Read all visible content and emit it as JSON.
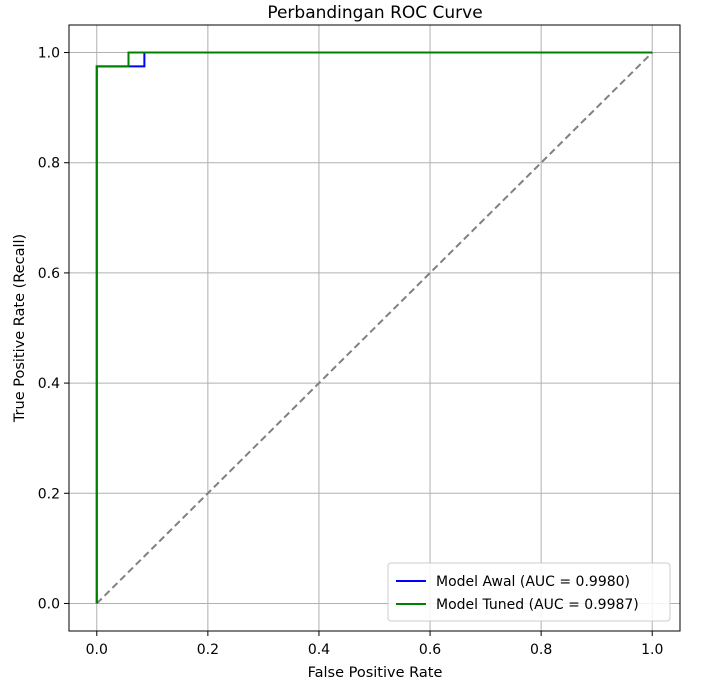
{
  "chart_data": {
    "type": "line",
    "title": "Perbandingan ROC Curve",
    "xlabel": "False Positive Rate",
    "ylabel": "True Positive Rate (Recall)",
    "xlim": [
      -0.05,
      1.05
    ],
    "ylim": [
      -0.05,
      1.05
    ],
    "xticks": [
      0.0,
      0.2,
      0.4,
      0.6,
      0.8,
      1.0
    ],
    "yticks": [
      0.0,
      0.2,
      0.4,
      0.6,
      0.8,
      1.0
    ],
    "xtick_labels": [
      "0.0",
      "0.2",
      "0.4",
      "0.6",
      "0.8",
      "1.0"
    ],
    "ytick_labels": [
      "0.0",
      "0.2",
      "0.4",
      "0.6",
      "0.8",
      "1.0"
    ],
    "grid": true,
    "legend_position": "lower-right",
    "series": [
      {
        "name": "Model Awal (AUC = 0.9980)",
        "color": "#0000ff",
        "x": [
          0.0,
          0.0,
          0.0,
          0.0857,
          0.0857,
          1.0
        ],
        "y": [
          0.0,
          0.025,
          0.975,
          0.975,
          1.0,
          1.0
        ]
      },
      {
        "name": "Model Tuned (AUC = 0.9987)",
        "color": "#008000",
        "x": [
          0.0,
          0.0,
          0.0571,
          0.0571,
          1.0
        ],
        "y": [
          0.0,
          0.975,
          0.975,
          1.0,
          1.0
        ]
      }
    ],
    "reference_line": {
      "style": "dashed",
      "color": "#808080",
      "x": [
        0.0,
        1.0
      ],
      "y": [
        0.0,
        1.0
      ]
    }
  }
}
